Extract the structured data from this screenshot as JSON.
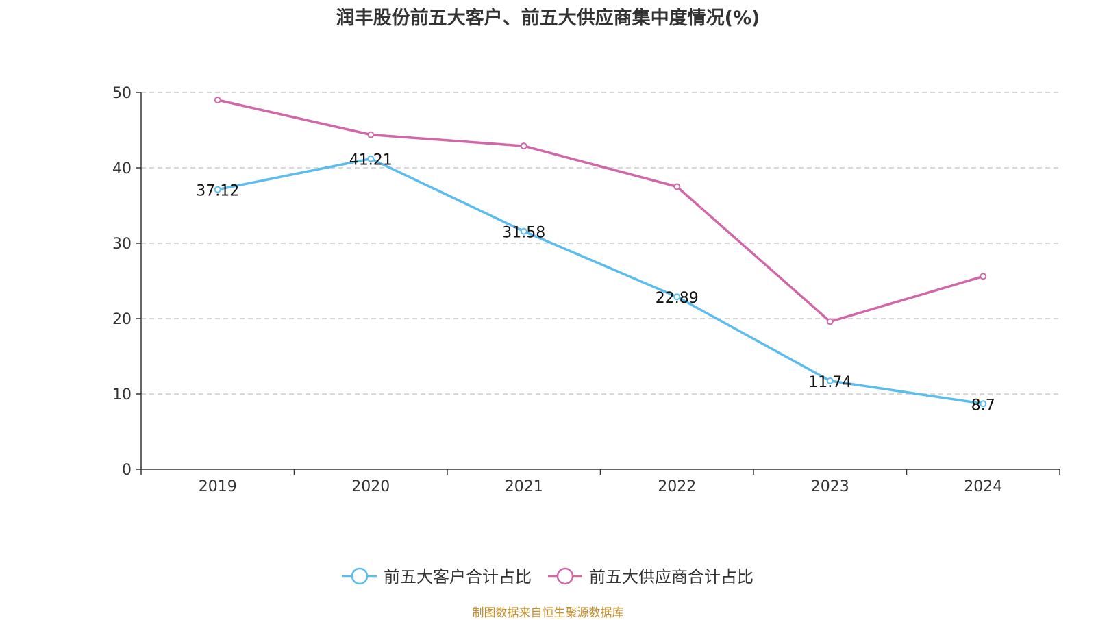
{
  "chart_data": {
    "type": "line",
    "title": "润丰股份前五大客户、前五大供应商集中度情况(%)",
    "categories": [
      "2019",
      "2020",
      "2021",
      "2022",
      "2023",
      "2024"
    ],
    "ylim": [
      0,
      50
    ],
    "yticks": [
      0,
      10,
      20,
      30,
      40,
      50
    ],
    "grid": true,
    "legend_position": "bottom",
    "series": [
      {
        "name": "前五大客户合计占比",
        "color": "#5bbcf0",
        "values": [
          37.12,
          41.21,
          31.58,
          22.89,
          11.74,
          8.7
        ],
        "labels": [
          "37.12",
          "41.21",
          "31.58",
          "22.89",
          "11.74",
          "8.7"
        ]
      },
      {
        "name": "前五大供应商合计占比",
        "color": "#d166a8",
        "values": [
          49.0,
          44.4,
          42.9,
          37.5,
          19.6,
          25.6
        ],
        "labels": []
      }
    ],
    "source": "制图数据来自恒生聚源数据库"
  }
}
